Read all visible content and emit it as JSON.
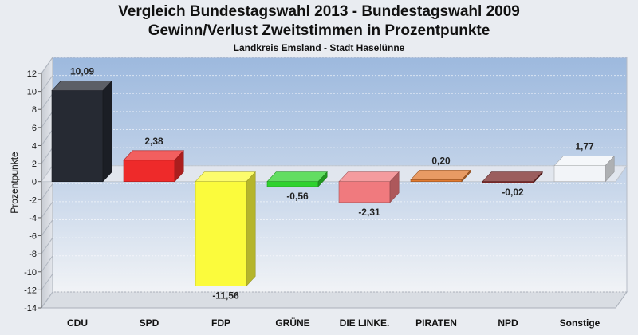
{
  "chart_data": {
    "type": "bar",
    "title": "Vergleich Bundestagswahl 2013 - Bundestagswahl 2009",
    "subtitle": "Gewinn/Verlust Zweitstimmen in Prozentpunkte",
    "subsubtitle": "Landkreis Emsland - Stadt Haselünne",
    "ylabel": "Prozentpunkte",
    "xlabel": "",
    "ylim": [
      -14,
      12
    ],
    "yticks": [
      -14,
      -12,
      -10,
      -8,
      -6,
      -4,
      -2,
      0,
      2,
      4,
      6,
      8,
      10,
      12
    ],
    "grid": true,
    "legend": "none",
    "categories": [
      "CDU",
      "SPD",
      "FDP",
      "GRÜNE",
      "DIE LINKE.",
      "PIRATEN",
      "NPD",
      "Sonstige"
    ],
    "values": [
      10.09,
      2.38,
      -11.56,
      -0.56,
      -2.31,
      0.2,
      -0.02,
      1.77
    ],
    "value_labels": [
      "10,09",
      "2,38",
      "-11,56",
      "-0,56",
      "-2,31",
      "0,20",
      "-0,02",
      "1,77"
    ],
    "colors": [
      "#262a33",
      "#ee2a2a",
      "#fbfb3c",
      "#2ed22e",
      "#f07a7e",
      "#e07a30",
      "#7a2828",
      "#f2f4f8"
    ]
  }
}
